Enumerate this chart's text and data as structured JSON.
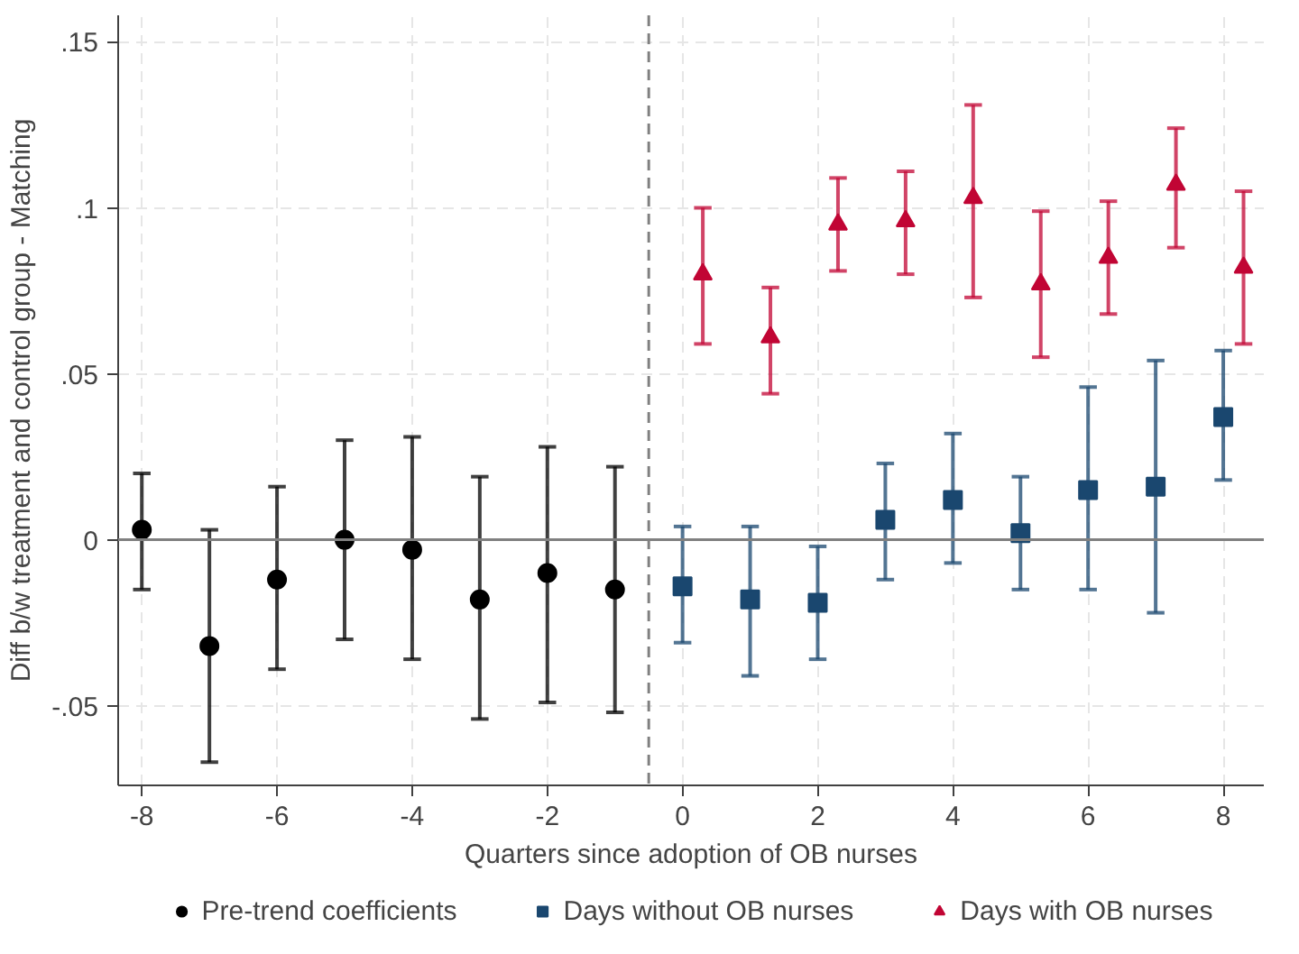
{
  "chart_data": {
    "type": "scatter",
    "xlabel": "Quarters since adoption of OB nurses",
    "ylabel": "Diff b/w treatment and control group - Matching",
    "xlim": [
      -8.35,
      8.6
    ],
    "ylim": [
      -0.074,
      0.158
    ],
    "xticks": [
      -8,
      -6,
      -4,
      -2,
      0,
      2,
      4,
      6,
      8
    ],
    "yticks": [
      {
        "value": -0.05,
        "label": "-.05"
      },
      0,
      {
        "value": 0.05,
        "label": ".05"
      },
      {
        "value": 0.1,
        "label": ".1"
      },
      {
        "value": 0.15,
        "label": ".15"
      }
    ],
    "grid": true,
    "legend": "bottom",
    "ref_lines": [
      {
        "axis": "y",
        "value": 0,
        "color": "#808080",
        "line_style": "solid"
      },
      {
        "axis": "x",
        "value": -0.5,
        "color": "#808080",
        "line_style": "dashed"
      }
    ],
    "series": [
      {
        "name": "Pre-trend coefficients",
        "color": "#000000",
        "marker": "circle",
        "x": [
          -8,
          -7,
          -6,
          -5,
          -4,
          -3,
          -2,
          -1
        ],
        "values": [
          0.003,
          -0.032,
          -0.012,
          0.0,
          -0.003,
          -0.018,
          -0.01,
          -0.015
        ],
        "errors": [
          [
            -0.015,
            0.02
          ],
          [
            -0.067,
            0.003
          ],
          [
            -0.039,
            0.016
          ],
          [
            -0.03,
            0.03
          ],
          [
            -0.036,
            0.031
          ],
          [
            -0.054,
            0.019
          ],
          [
            -0.049,
            0.028
          ],
          [
            -0.052,
            0.022
          ]
        ]
      },
      {
        "name": "Days without OB nurses",
        "color": "#1a476f",
        "marker": "square",
        "x": [
          0,
          1,
          2,
          3,
          4,
          5,
          6,
          7,
          8
        ],
        "values": [
          -0.014,
          -0.018,
          -0.019,
          0.006,
          0.012,
          0.002,
          0.015,
          0.016,
          0.037
        ],
        "errors": [
          [
            -0.031,
            0.004
          ],
          [
            -0.041,
            0.004
          ],
          [
            -0.036,
            -0.002
          ],
          [
            -0.012,
            0.023
          ],
          [
            -0.007,
            0.032
          ],
          [
            -0.015,
            0.019
          ],
          [
            -0.015,
            0.046
          ],
          [
            -0.022,
            0.054
          ],
          [
            0.018,
            0.057
          ]
        ]
      },
      {
        "name": "Days with OB nurses",
        "color": "#c10534",
        "marker": "triangle",
        "x": [
          0.3,
          1.3,
          2.3,
          3.3,
          4.3,
          5.3,
          6.3,
          7.3,
          8.3
        ],
        "values": [
          0.08,
          0.061,
          0.095,
          0.096,
          0.103,
          0.077,
          0.085,
          0.107,
          0.082
        ],
        "errors": [
          [
            0.059,
            0.1
          ],
          [
            0.044,
            0.076
          ],
          [
            0.081,
            0.109
          ],
          [
            0.08,
            0.111
          ],
          [
            0.073,
            0.131
          ],
          [
            0.055,
            0.099
          ],
          [
            0.068,
            0.102
          ],
          [
            0.088,
            0.124
          ],
          [
            0.059,
            0.105
          ]
        ]
      }
    ]
  }
}
